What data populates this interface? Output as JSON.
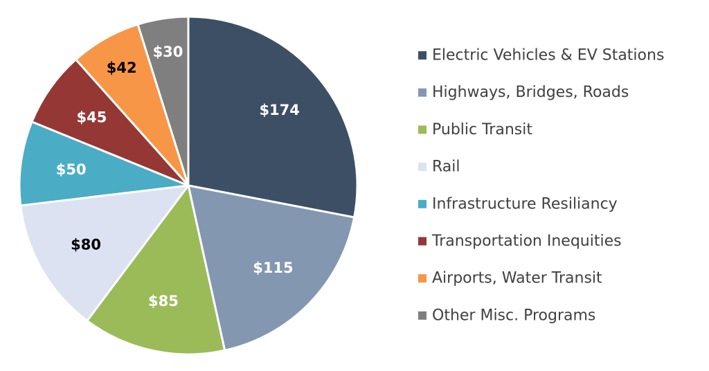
{
  "chart_data": {
    "type": "pie",
    "title": "",
    "legend_position": "right",
    "start_angle_deg": 0,
    "direction": "clockwise",
    "slices": [
      {
        "category": "Electric Vehicles & EV Stations",
        "value": 174,
        "label": "$174",
        "color": "#3d4f65",
        "label_color": "#ffffff"
      },
      {
        "category": "Highways, Bridges, Roads",
        "value": 115,
        "label": "$115",
        "color": "#8497b0",
        "label_color": "#ffffff"
      },
      {
        "category": "Public Transit",
        "value": 85,
        "label": "$85",
        "color": "#9bbb59",
        "label_color": "#ffffff"
      },
      {
        "category": "Rail",
        "value": 80,
        "label": "$80",
        "color": "#dce2f2",
        "label_color": "#000000"
      },
      {
        "category": "Infrastructure Resiliancy",
        "value": 50,
        "label": "$50",
        "color": "#4bacc6",
        "label_color": "#ffffff"
      },
      {
        "category": "Transportation Inequities",
        "value": 45,
        "label": "$45",
        "color": "#953735",
        "label_color": "#ffffff"
      },
      {
        "category": "Airports, Water Transit",
        "value": 42,
        "label": "$42",
        "color": "#f79646",
        "label_color": "#000000"
      },
      {
        "category": "Other Misc. Programs",
        "value": 30,
        "label": "$30",
        "color": "#7f7f7f",
        "label_color": "#ffffff"
      }
    ]
  }
}
